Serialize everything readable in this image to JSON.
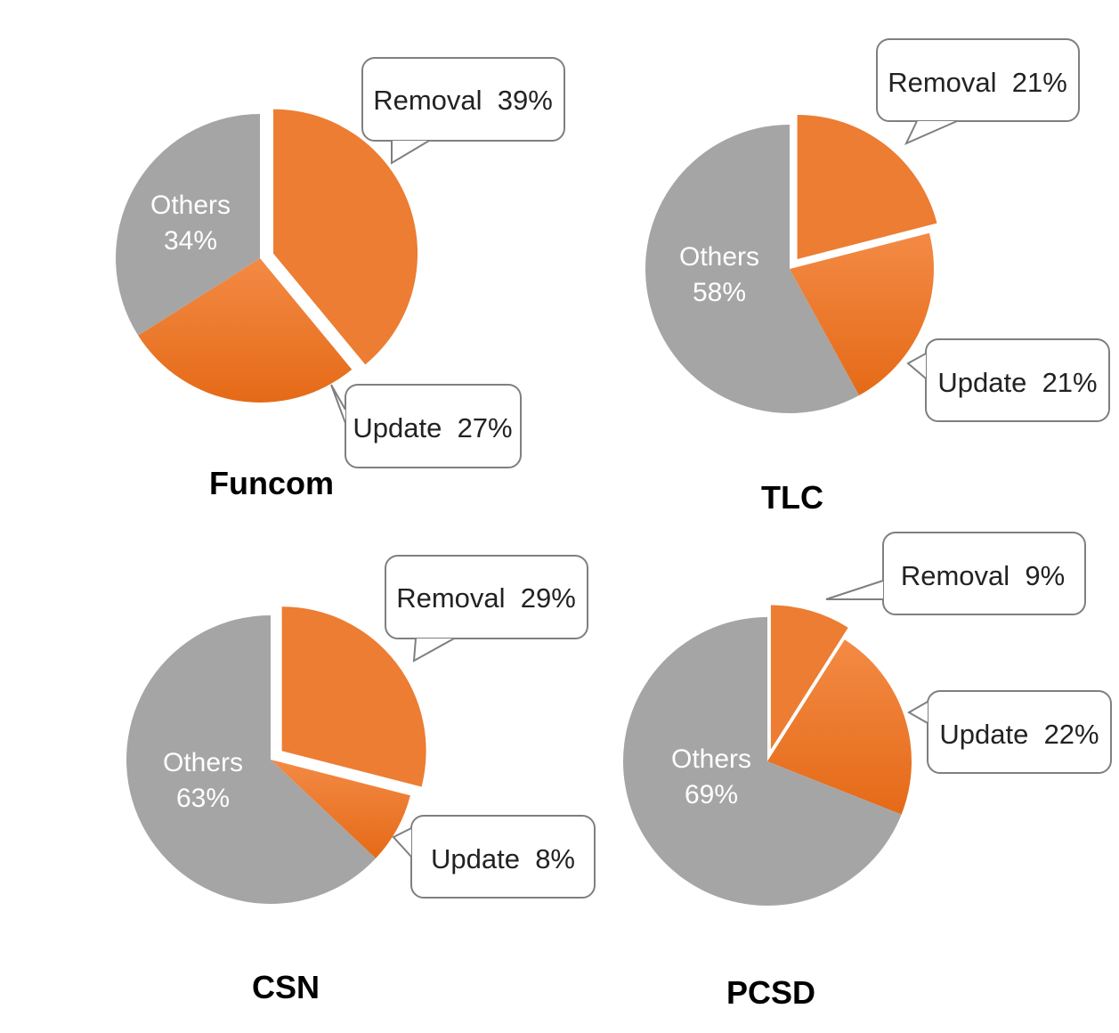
{
  "colors": {
    "removal": "#ec7d32",
    "update": "#ef7a2a",
    "others": "#a5a5a5"
  },
  "chart_data": [
    {
      "type": "pie",
      "title": "Funcom",
      "slices": [
        {
          "label": "Removal",
          "value": 39,
          "text": "Removal  39%",
          "exploded": true
        },
        {
          "label": "Update",
          "value": 27,
          "text": "Update  27%",
          "exploded": false
        },
        {
          "label": "Others",
          "value": 34,
          "text_lines": [
            "Others",
            "34%"
          ],
          "exploded": false
        }
      ]
    },
    {
      "type": "pie",
      "title": "TLC",
      "slices": [
        {
          "label": "Removal",
          "value": 21,
          "text": "Removal  21%",
          "exploded": true
        },
        {
          "label": "Update",
          "value": 21,
          "text": "Update  21%",
          "exploded": false
        },
        {
          "label": "Others",
          "value": 58,
          "text_lines": [
            "Others",
            "58%"
          ],
          "exploded": false
        }
      ]
    },
    {
      "type": "pie",
      "title": "CSN",
      "slices": [
        {
          "label": "Removal",
          "value": 29,
          "text": "Removal  29%",
          "exploded": true
        },
        {
          "label": "Update",
          "value": 8,
          "text": "Update  8%",
          "exploded": false
        },
        {
          "label": "Others",
          "value": 63,
          "text_lines": [
            "Others",
            "63%"
          ],
          "exploded": false
        }
      ]
    },
    {
      "type": "pie",
      "title": "PCSD",
      "slices": [
        {
          "label": "Removal",
          "value": 9,
          "text": "Removal  9%",
          "exploded": true
        },
        {
          "label": "Update",
          "value": 22,
          "text": "Update  22%",
          "exploded": false
        },
        {
          "label": "Others",
          "value": 69,
          "text_lines": [
            "Others",
            "69%"
          ],
          "exploded": false
        }
      ]
    }
  ]
}
